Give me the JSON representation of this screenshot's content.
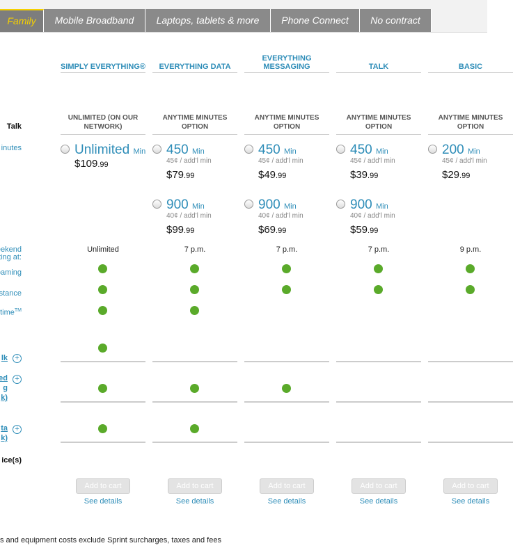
{
  "tabs": [
    "Family",
    "Mobile Broadband",
    "Laptops, tablets & more",
    "Phone Connect",
    "No contract"
  ],
  "row_labels": {
    "talk": "Talk",
    "minutes": "inutes",
    "weekend": [
      "eekend",
      "ting at:"
    ],
    "roaming": "oaming",
    "long_distance": "stance",
    "anytime": "time",
    "anytime_sup": "TM",
    "extra_1": "lk",
    "extra_2": [
      "ed",
      "g",
      "k)"
    ],
    "extra_3": [
      "ta",
      "k)"
    ],
    "devices": "ice(s)"
  },
  "plans": [
    {
      "name": "SIMPLY EVERYTHING®",
      "talk": "UNLIMITED (ON OUR NETWORK)",
      "options": [
        {
          "minutes": "Unlimited",
          "unit": "Min",
          "price": "$109",
          "cents": ".99"
        }
      ],
      "weekend": "Unlimited",
      "add_to_cart": "Add to cart",
      "see_details": "See details"
    },
    {
      "name": "EVERYTHING DATA",
      "talk": "ANYTIME MINUTES OPTION",
      "options": [
        {
          "minutes": "450",
          "unit": "Min",
          "rate": "45¢ / add'l min",
          "price": "$79",
          "cents": ".99"
        },
        {
          "minutes": "900",
          "unit": "Min",
          "rate": "40¢ / add'l min",
          "price": "$99",
          "cents": ".99"
        }
      ],
      "weekend": "7 p.m.",
      "add_to_cart": "Add to cart",
      "see_details": "See details"
    },
    {
      "name": "EVERYTHING MESSAGING",
      "talk": "ANYTIME MINUTES OPTION",
      "options": [
        {
          "minutes": "450",
          "unit": "Min",
          "rate": "45¢ / add'l min",
          "price": "$49",
          "cents": ".99"
        },
        {
          "minutes": "900",
          "unit": "Min",
          "rate": "40¢ / add'l min",
          "price": "$69",
          "cents": ".99"
        }
      ],
      "weekend": "7 p.m.",
      "add_to_cart": "Add to cart",
      "see_details": "See details"
    },
    {
      "name": "TALK",
      "talk": "ANYTIME MINUTES OPTION",
      "options": [
        {
          "minutes": "450",
          "unit": "Min",
          "rate": "45¢ / add'l min",
          "price": "$39",
          "cents": ".99"
        },
        {
          "minutes": "900",
          "unit": "Min",
          "rate": "40¢ / add'l min",
          "price": "$59",
          "cents": ".99"
        }
      ],
      "weekend": "7 p.m.",
      "add_to_cart": "Add to cart",
      "see_details": "See details"
    },
    {
      "name": "BASIC",
      "talk": "ANYTIME MINUTES OPTION",
      "options": [
        {
          "minutes": "200",
          "unit": "Min",
          "rate": "45¢ / add'l min",
          "price": "$29",
          "cents": ".99"
        }
      ],
      "weekend": "9 p.m.",
      "add_to_cart": "Add to cart",
      "see_details": "See details"
    }
  ],
  "footer": "s and equipment costs exclude Sprint surcharges, taxes and fees"
}
